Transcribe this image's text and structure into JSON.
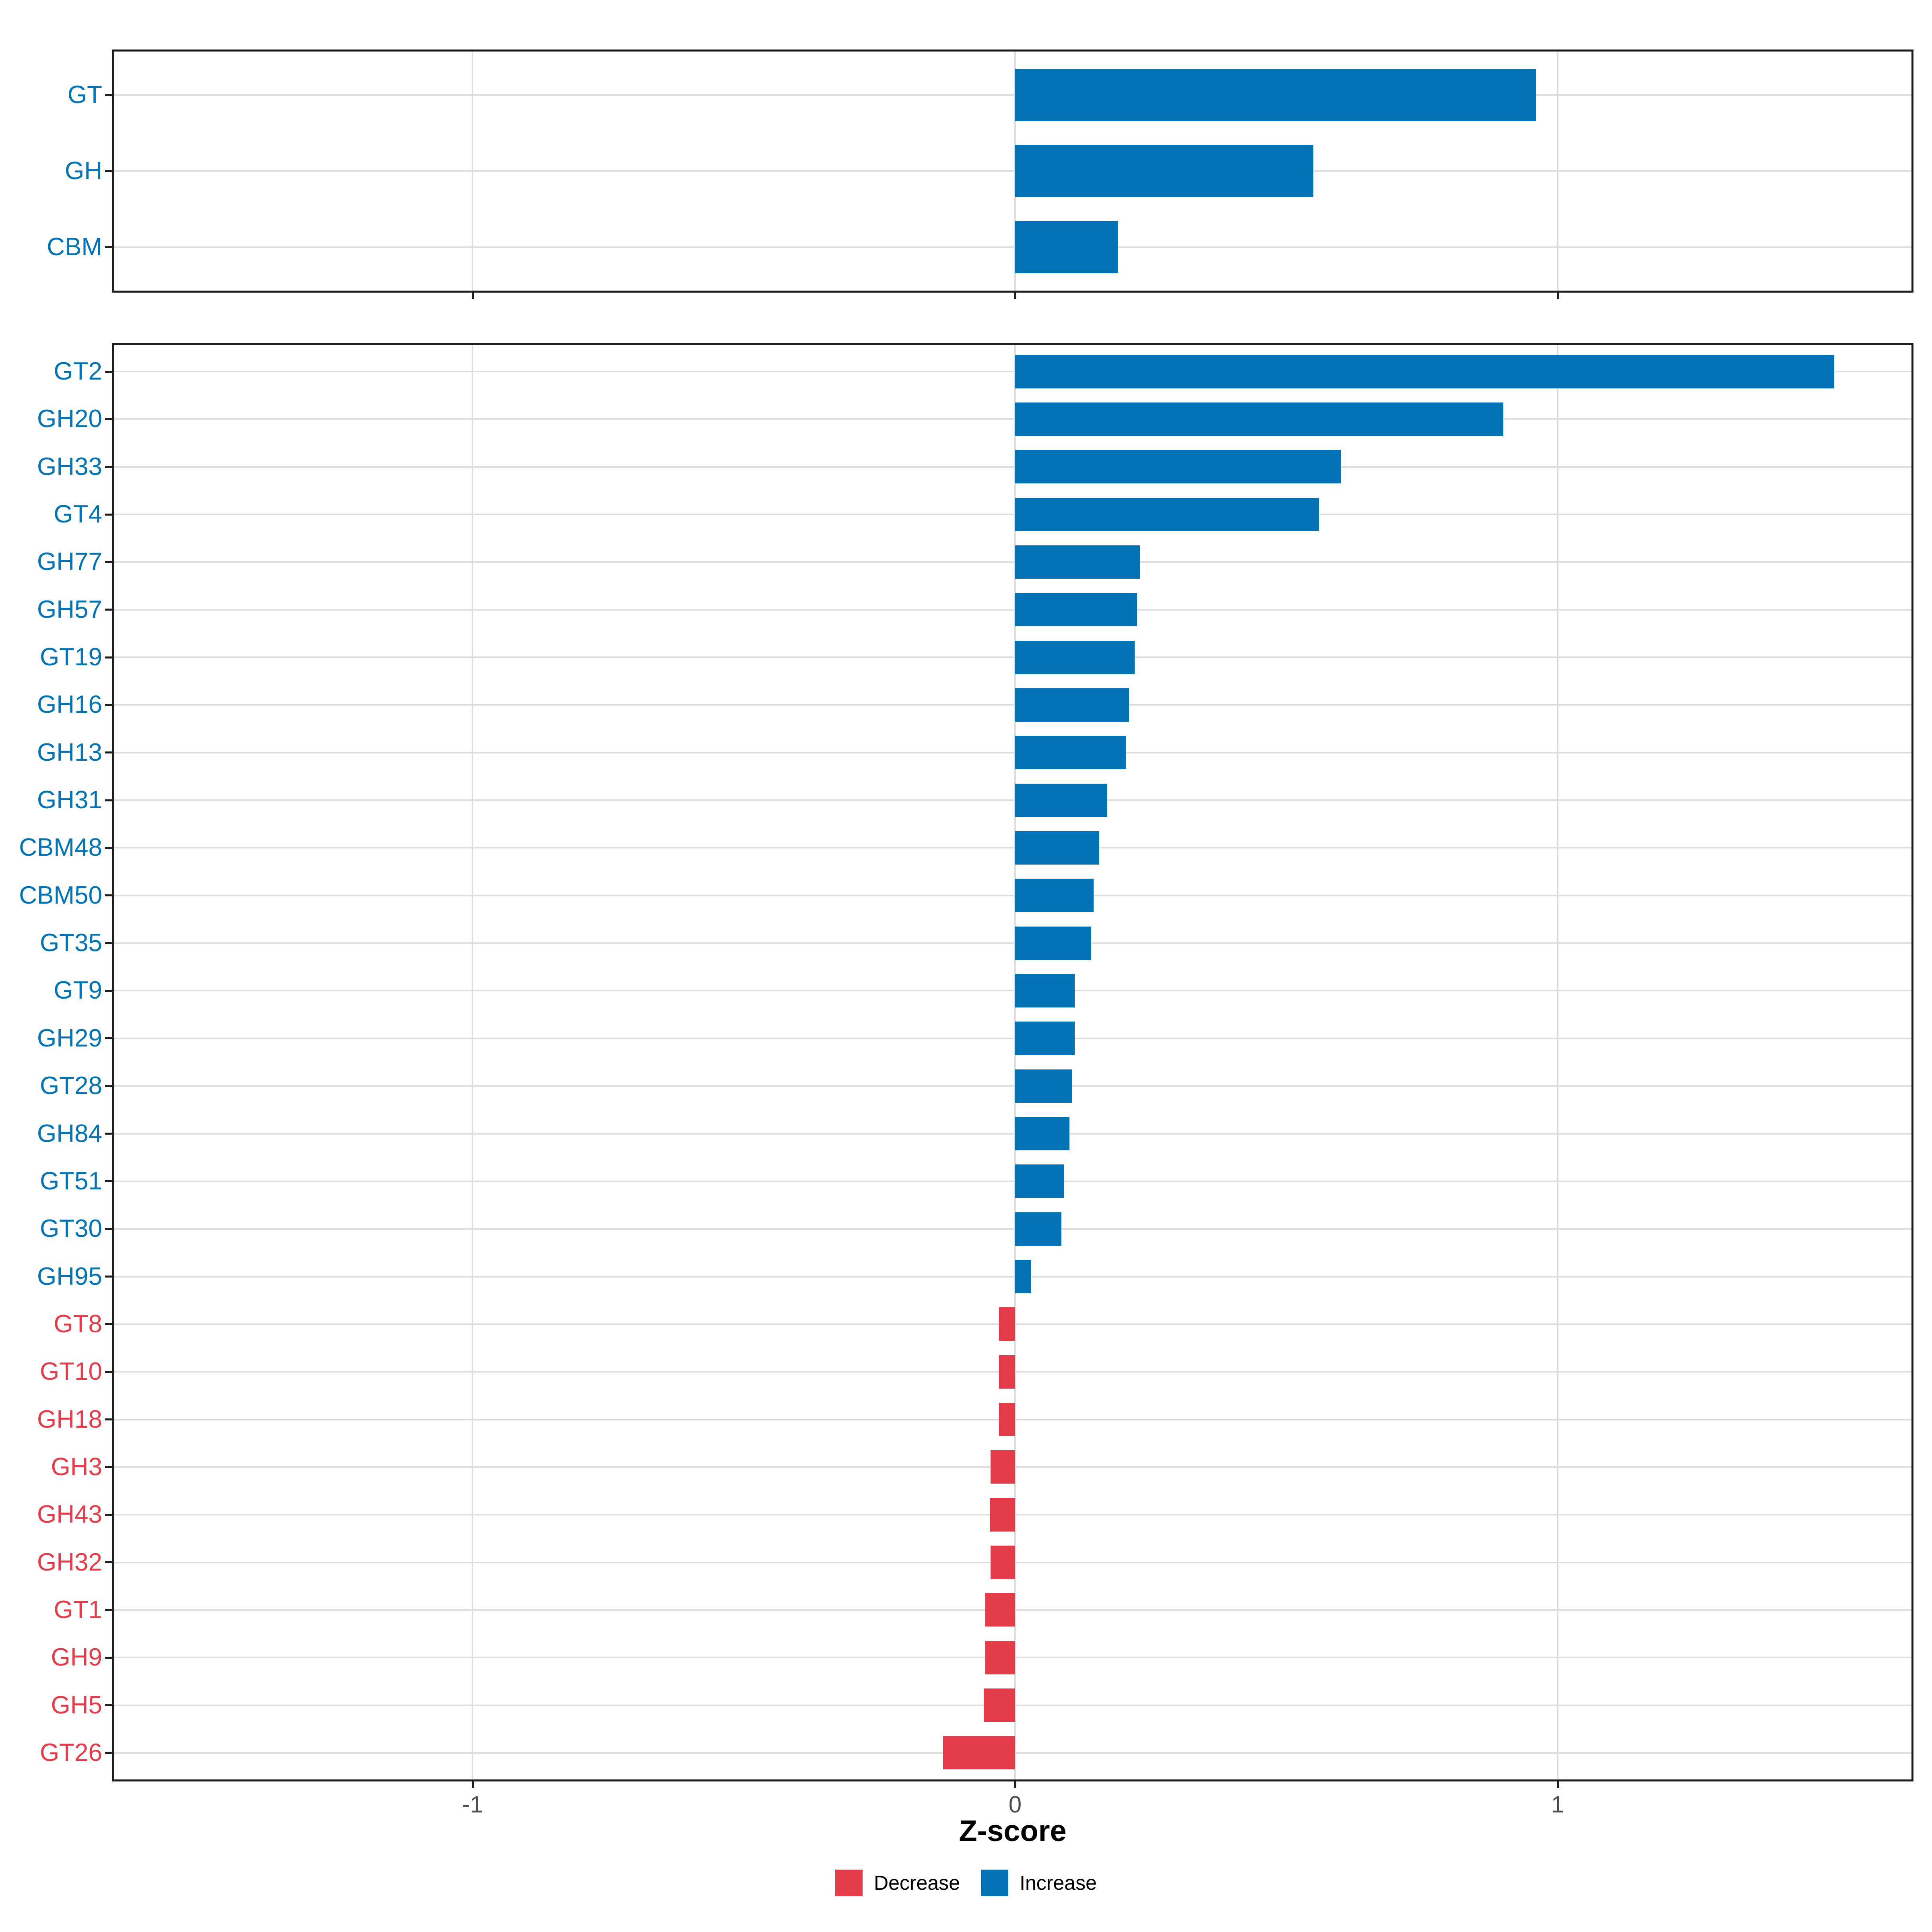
{
  "figure": {
    "background": "#FFFFFF",
    "description": "Two-panel horizontal bar chart of Z-scores for CAZyme classes (top) and families (bottom), colored by direction of change"
  },
  "axis": {
    "xlabel": "Z-score",
    "xticks": [
      -1,
      0,
      1
    ]
  },
  "legend": {
    "items": [
      {
        "key": "decrease",
        "label": "Decrease"
      },
      {
        "key": "increase",
        "label": "Increase"
      }
    ]
  },
  "colors": {
    "increase": "#0274B6",
    "decrease": "#E53C4B",
    "grid": "#DEDEDE",
    "panel_border": "#1F1F1F",
    "tick": "#1F1F1F",
    "tick_label": "#4D4D4D",
    "axis_title": "#000000"
  },
  "chart_data": [
    {
      "id": "cazyme-class-panel",
      "type": "bar",
      "orientation": "horizontal",
      "title": "",
      "xlabel": "",
      "ylabel": "",
      "grid": true,
      "legend_position": "none",
      "xlim": [
        -1.67,
        1.66
      ],
      "xticks": [
        -1,
        0,
        1
      ],
      "categories": [
        "GT",
        "GH",
        "CBM"
      ],
      "values": [
        0.96,
        0.55,
        0.19
      ],
      "groups": [
        "Increase",
        "Increase",
        "Increase"
      ]
    },
    {
      "id": "cazyme-family-panel",
      "type": "bar",
      "orientation": "horizontal",
      "title": "",
      "xlabel": "Z-score",
      "ylabel": "",
      "grid": true,
      "legend_position": "bottom",
      "xlim": [
        -1.67,
        1.66
      ],
      "xticks": [
        -1,
        0,
        1
      ],
      "categories": [
        "GT2",
        "GH20",
        "GH33",
        "GT4",
        "GH77",
        "GH57",
        "GT19",
        "GH16",
        "GH13",
        "GH31",
        "CBM48",
        "CBM50",
        "GT35",
        "GT9",
        "GH29",
        "GT28",
        "GH84",
        "GT51",
        "GT30",
        "GH95",
        "GT8",
        "GT10",
        "GH18",
        "GH3",
        "GH43",
        "GH32",
        "GT1",
        "GH9",
        "GH5",
        "GT26"
      ],
      "values": [
        1.51,
        0.9,
        0.6,
        0.56,
        0.23,
        0.225,
        0.22,
        0.21,
        0.205,
        0.17,
        0.155,
        0.145,
        0.14,
        0.11,
        0.11,
        0.105,
        0.1,
        0.09,
        0.085,
        0.03,
        -0.03,
        -0.03,
        -0.03,
        -0.045,
        -0.047,
        -0.045,
        -0.055,
        -0.055,
        -0.058,
        -0.133
      ],
      "groups": [
        "Increase",
        "Increase",
        "Increase",
        "Increase",
        "Increase",
        "Increase",
        "Increase",
        "Increase",
        "Increase",
        "Increase",
        "Increase",
        "Increase",
        "Increase",
        "Increase",
        "Increase",
        "Increase",
        "Increase",
        "Increase",
        "Increase",
        "Increase",
        "Decrease",
        "Decrease",
        "Decrease",
        "Decrease",
        "Decrease",
        "Decrease",
        "Decrease",
        "Decrease",
        "Decrease",
        "Decrease"
      ]
    }
  ]
}
